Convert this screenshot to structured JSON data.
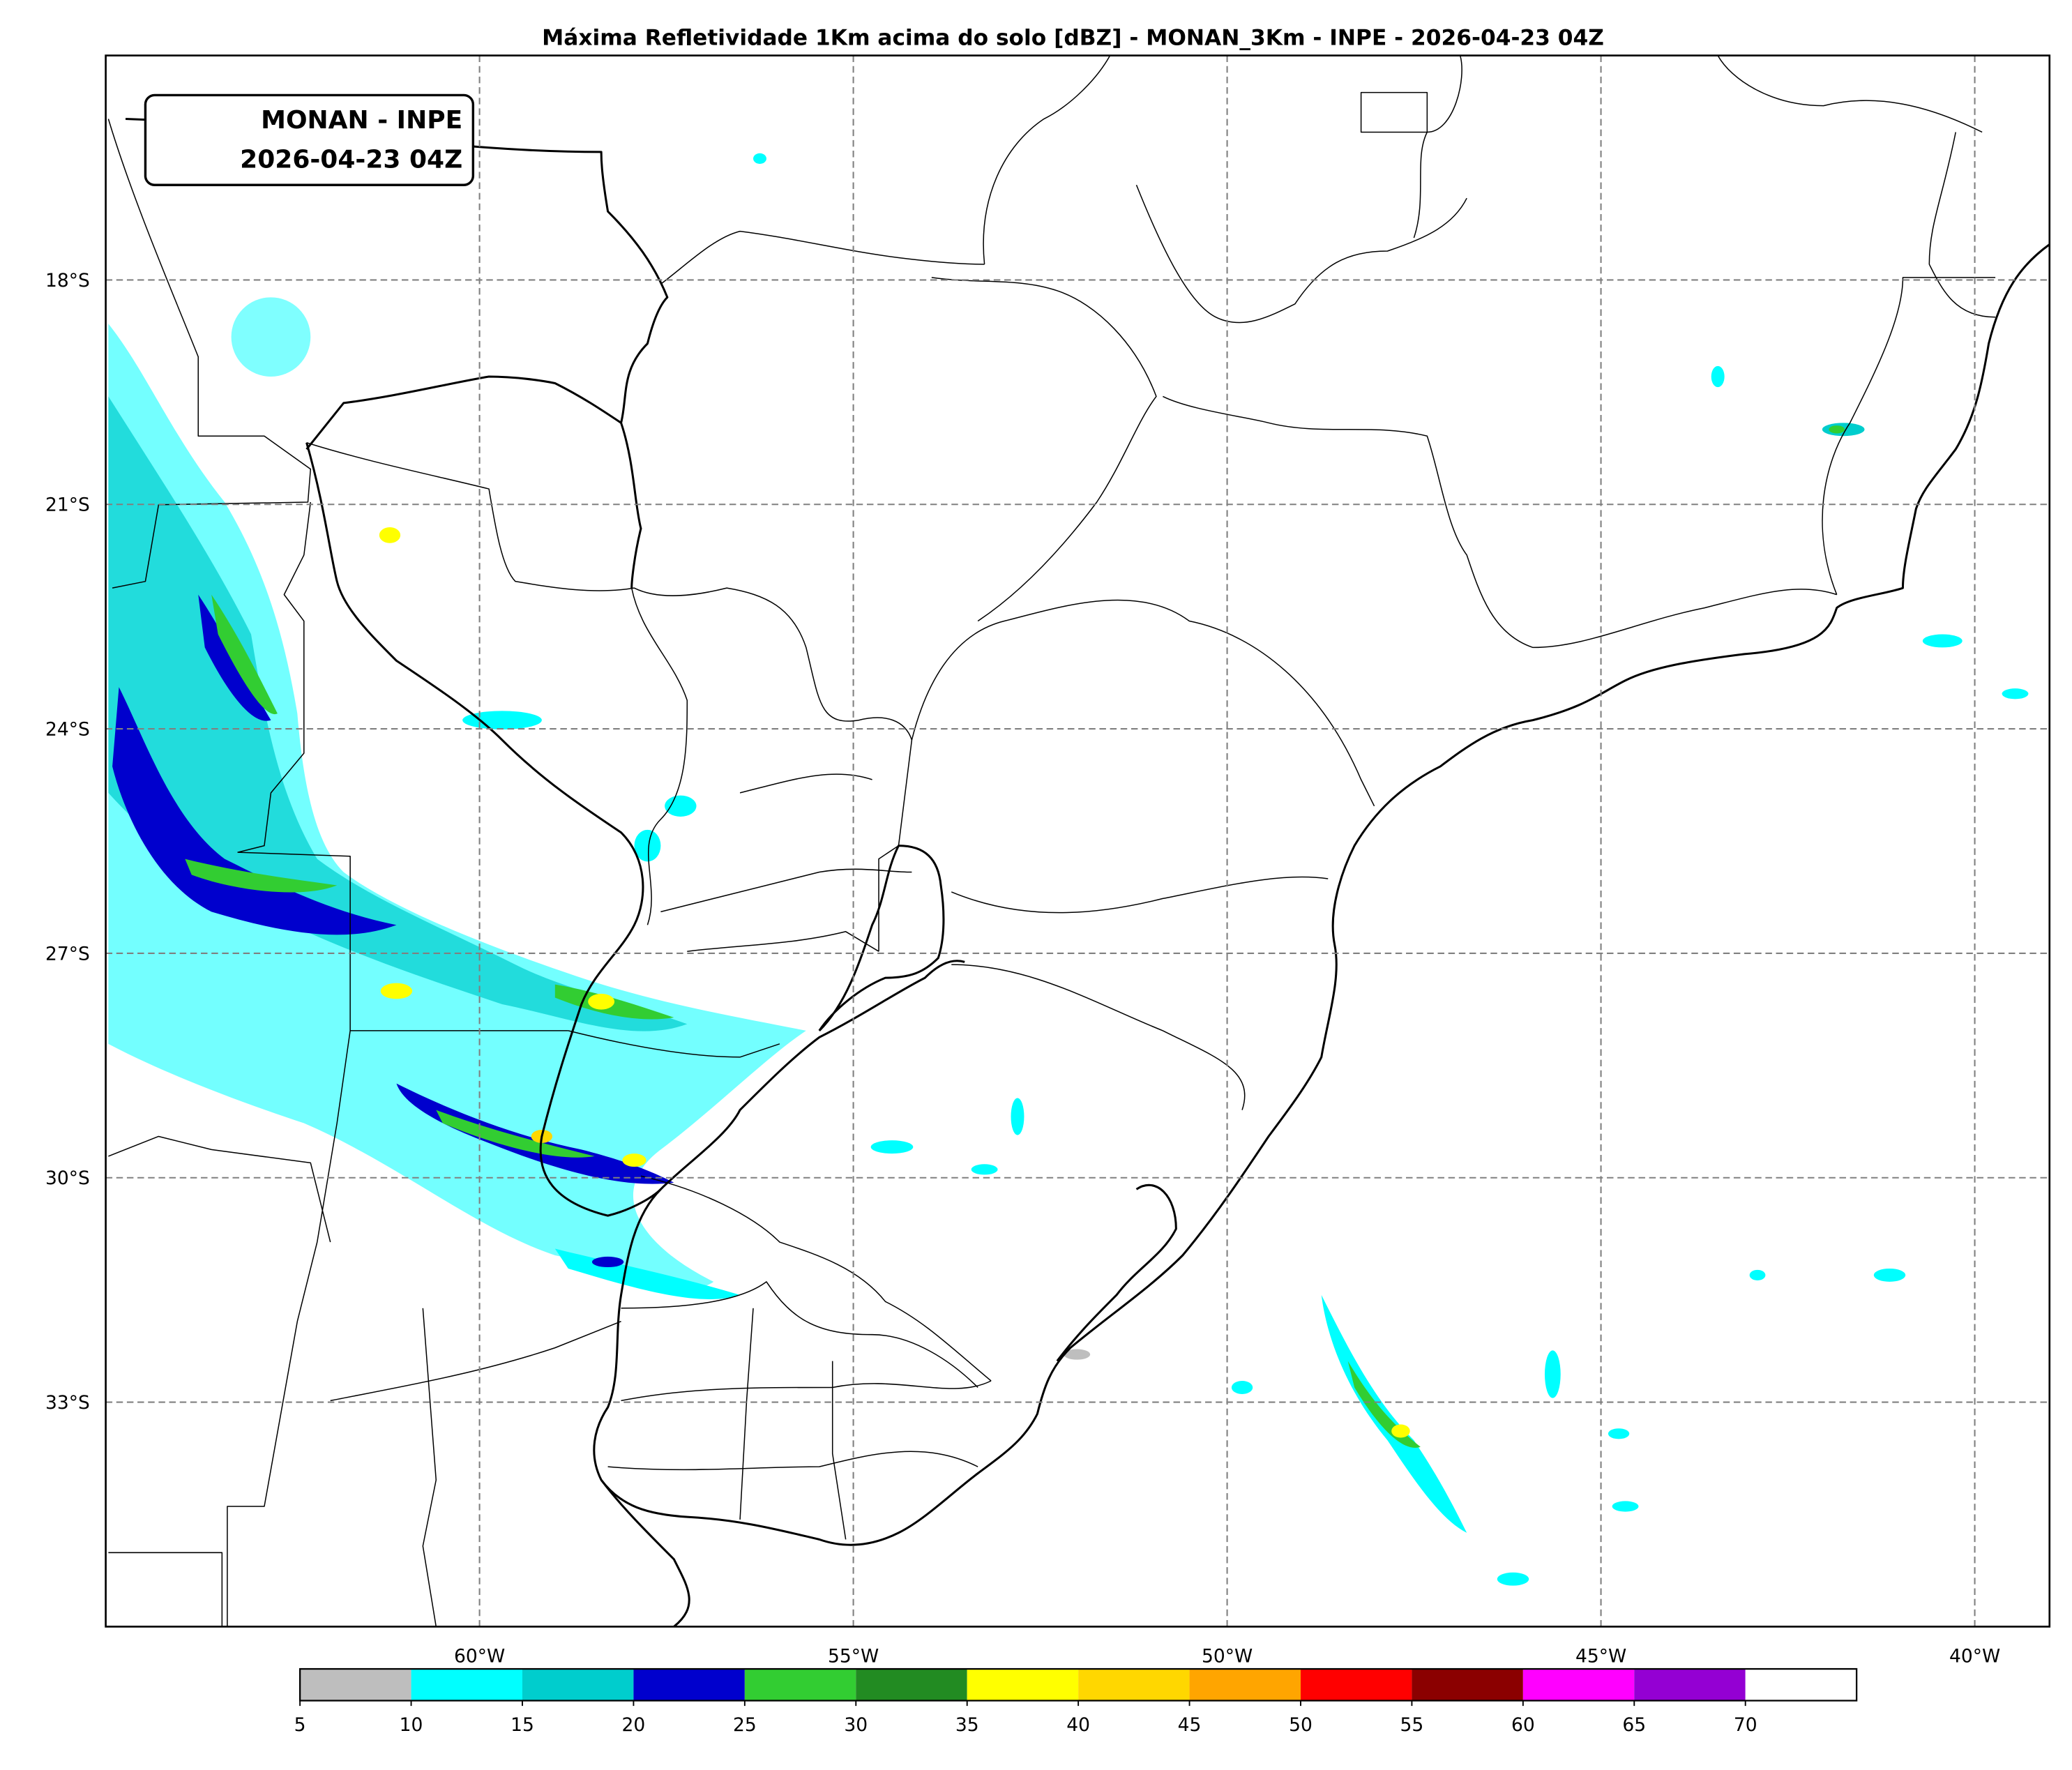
{
  "title": "Máxima Refletividade 1Km acima do solo [dBZ] - MONAN_3Km - INPE - 2026-04-23 04Z",
  "label_box": [
    "MONAN - INPE",
    "2026-04-23 04Z"
  ],
  "map": {
    "lonlim": [
      -65,
      -39
    ],
    "latlim": [
      -36,
      -15
    ],
    "lon_ticks": [
      {
        "value": -60,
        "label": "60°W"
      },
      {
        "value": -55,
        "label": "55°W"
      },
      {
        "value": -50,
        "label": "50°W"
      },
      {
        "value": -45,
        "label": "45°W"
      },
      {
        "value": -40,
        "label": "40°W"
      }
    ],
    "lat_ticks": [
      {
        "value": -18,
        "label": "18°S"
      },
      {
        "value": -21,
        "label": "21°S"
      },
      {
        "value": -24,
        "label": "24°S"
      },
      {
        "value": -27,
        "label": "27°S"
      },
      {
        "value": -30,
        "label": "30°S"
      },
      {
        "value": -33,
        "label": "33°S"
      }
    ],
    "grid": true
  },
  "colorbar": {
    "bounds": [
      5,
      10,
      15,
      20,
      25,
      30,
      35,
      40,
      45,
      50,
      55,
      60,
      65,
      70
    ],
    "colors": [
      "#bebebe",
      "#00ffff",
      "#00cdcd",
      "#0000cd",
      "#32cd32",
      "#228b22",
      "#ffff00",
      "#ffd700",
      "#ffa500",
      "#ff0000",
      "#8b0000",
      "#ff00ff",
      "#9400d3"
    ],
    "over_color": "#ffffff"
  }
}
